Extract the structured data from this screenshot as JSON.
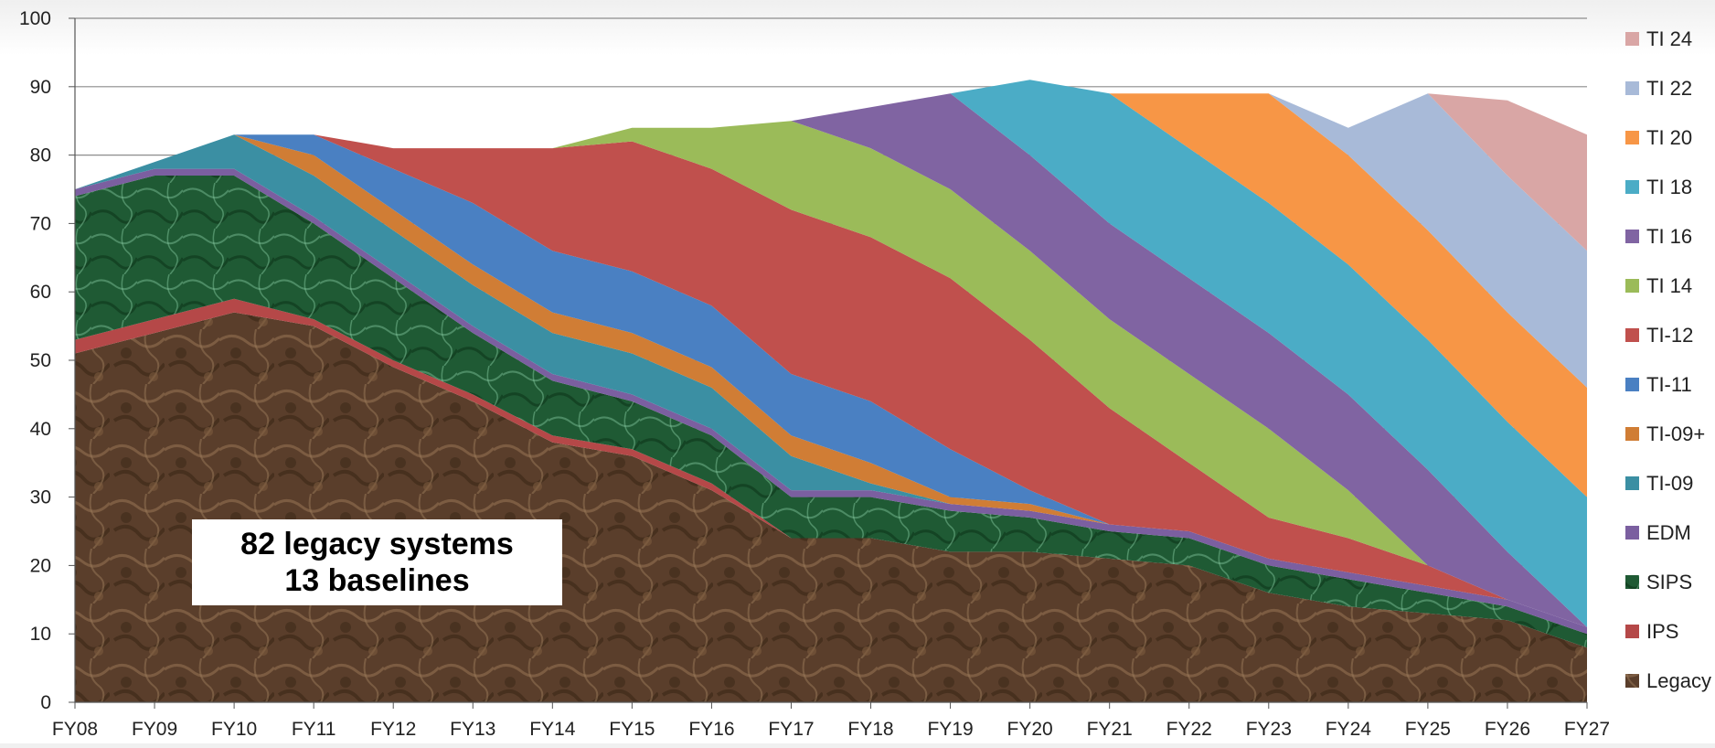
{
  "chart_data": {
    "type": "area",
    "stacked": true,
    "x": [
      "FY08",
      "FY09",
      "FY10",
      "FY11",
      "FY12",
      "FY13",
      "FY14",
      "FY15",
      "FY16",
      "FY17",
      "FY18",
      "FY19",
      "FY20",
      "FY21",
      "FY22",
      "FY23",
      "FY24",
      "FY25",
      "FY26",
      "FY27"
    ],
    "ylim": [
      0,
      100
    ],
    "yticks": [
      0,
      10,
      20,
      30,
      40,
      50,
      60,
      70,
      80,
      90,
      100
    ],
    "grid": true,
    "legend_position": "right",
    "series": [
      {
        "name": "Legacy",
        "color": "#5a3e2b",
        "values": [
          51,
          54,
          57,
          55,
          49,
          44,
          38,
          36,
          31,
          24,
          24,
          22,
          22,
          21,
          20,
          16,
          14,
          13,
          12,
          8
        ]
      },
      {
        "name": "IPS",
        "color": "#b54848",
        "values": [
          2,
          2,
          2,
          1,
          1,
          1,
          1,
          1,
          1,
          0,
          0,
          0,
          0,
          0,
          0,
          0,
          0,
          0,
          0,
          0
        ]
      },
      {
        "name": "SIPS",
        "color": "#1f5a34",
        "values": [
          21,
          21,
          18,
          14,
          12,
          9,
          8,
          7,
          7,
          6,
          6,
          6,
          5,
          4,
          4,
          4,
          4,
          3,
          2,
          2
        ]
      },
      {
        "name": "EDM",
        "color": "#7b5fa0",
        "values": [
          1,
          1,
          1,
          1,
          1,
          1,
          1,
          1,
          1,
          1,
          1,
          1,
          1,
          1,
          1,
          1,
          1,
          1,
          1,
          1
        ]
      },
      {
        "name": "TI-09",
        "color": "#3b8fa3",
        "values": [
          0,
          1,
          5,
          6,
          6,
          6,
          6,
          6,
          6,
          5,
          1,
          0,
          0,
          0,
          0,
          0,
          0,
          0,
          0,
          0
        ]
      },
      {
        "name": "TI-09+",
        "color": "#d07d35",
        "values": [
          0,
          0,
          0,
          3,
          3,
          3,
          3,
          3,
          3,
          3,
          3,
          1,
          1,
          0,
          0,
          0,
          0,
          0,
          0,
          0
        ]
      },
      {
        "name": "TI-11",
        "color": "#4a80c2",
        "values": [
          0,
          0,
          0,
          3,
          6,
          9,
          9,
          9,
          9,
          9,
          9,
          7,
          2,
          0,
          0,
          0,
          0,
          0,
          0,
          0
        ]
      },
      {
        "name": "TI-12",
        "color": "#c0504d",
        "values": [
          0,
          0,
          0,
          0,
          3,
          8,
          15,
          19,
          20,
          24,
          24,
          25,
          22,
          17,
          10,
          6,
          5,
          3,
          0,
          0
        ]
      },
      {
        "name": "TI 14",
        "color": "#9bbb59",
        "values": [
          0,
          0,
          0,
          0,
          0,
          0,
          0,
          2,
          6,
          13,
          13,
          13,
          13,
          13,
          13,
          13,
          7,
          0,
          0,
          0
        ]
      },
      {
        "name": "TI 16",
        "color": "#8064a2",
        "values": [
          0,
          0,
          0,
          0,
          0,
          0,
          0,
          0,
          0,
          0,
          6,
          14,
          14,
          14,
          14,
          14,
          14,
          14,
          7,
          0
        ]
      },
      {
        "name": "TI 18",
        "color": "#4bacc6",
        "values": [
          0,
          0,
          0,
          0,
          0,
          0,
          0,
          0,
          0,
          0,
          0,
          0,
          11,
          19,
          19,
          19,
          19,
          19,
          19,
          19
        ]
      },
      {
        "name": "TI 20",
        "color": "#f79646",
        "values": [
          0,
          0,
          0,
          0,
          0,
          0,
          0,
          0,
          0,
          0,
          0,
          0,
          0,
          0,
          8,
          16,
          16,
          16,
          16,
          16
        ]
      },
      {
        "name": "TI 22",
        "color": "#a8bad8",
        "values": [
          0,
          0,
          0,
          0,
          0,
          0,
          0,
          0,
          0,
          0,
          0,
          0,
          0,
          0,
          0,
          0,
          4,
          20,
          20,
          20
        ]
      },
      {
        "name": "TI 24",
        "color": "#d9a6a5",
        "values": [
          0,
          0,
          0,
          0,
          0,
          0,
          0,
          0,
          0,
          0,
          0,
          0,
          0,
          0,
          0,
          0,
          0,
          0,
          11,
          17
        ]
      }
    ],
    "legend_order": [
      "TI 24",
      "TI 22",
      "TI 20",
      "TI 18",
      "TI 16",
      "TI 14",
      "TI-12",
      "TI-11",
      "TI-09+",
      "TI-09",
      "EDM",
      "SIPS",
      "IPS",
      "Legacy"
    ],
    "annotation": {
      "line1": "82 legacy systems",
      "line2": "13 baselines"
    }
  }
}
